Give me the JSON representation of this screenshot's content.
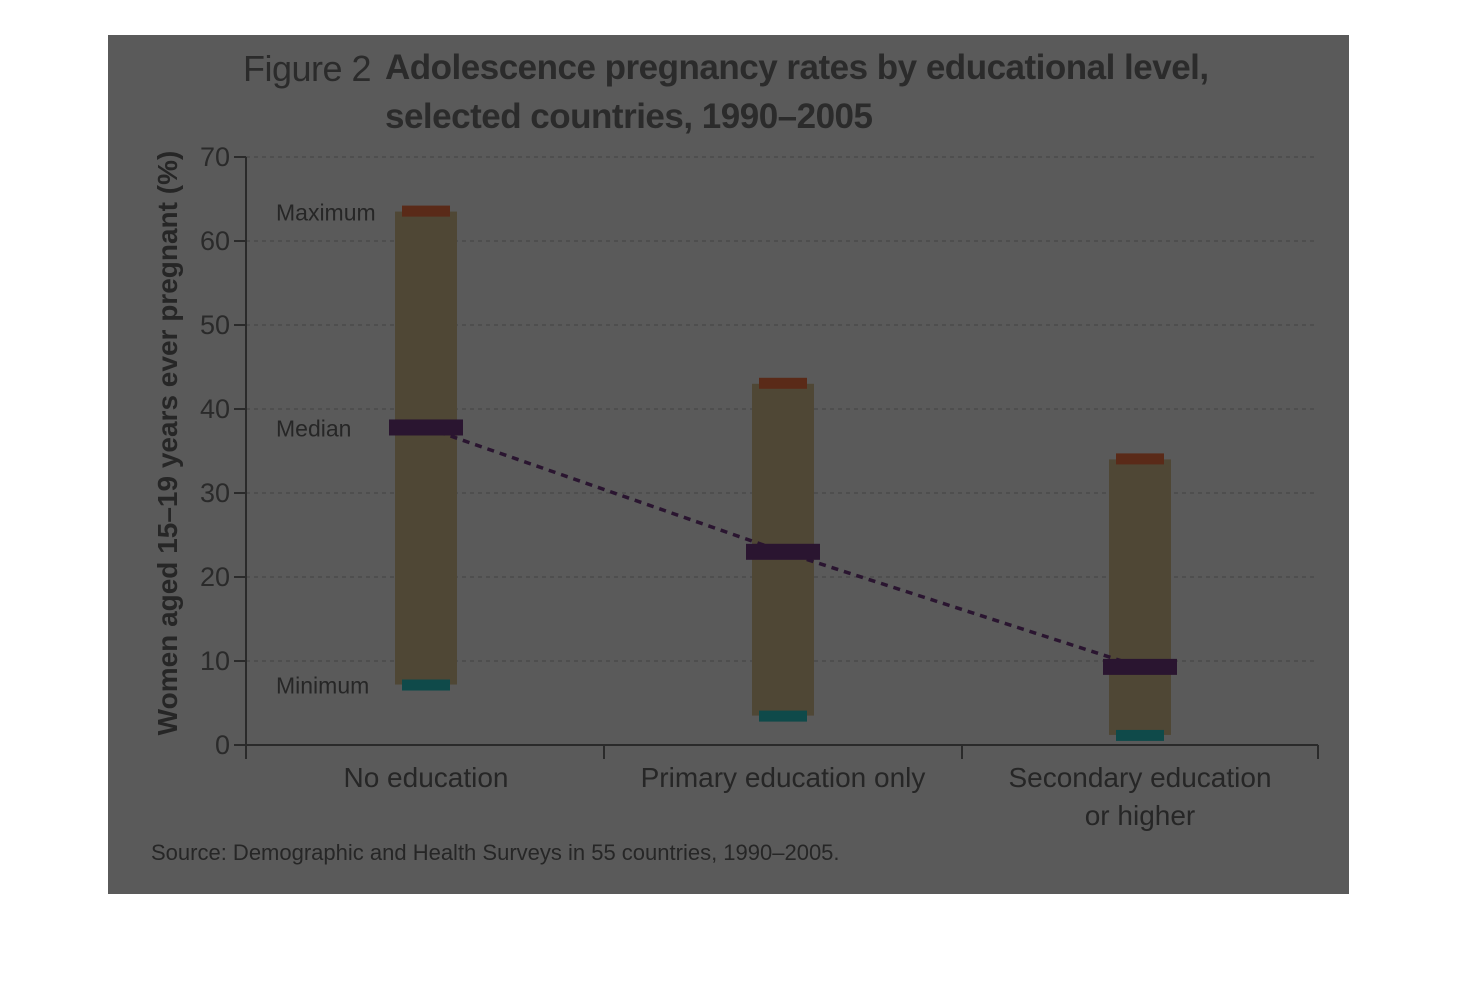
{
  "figure_label": "Figure 2",
  "title_line_1": "Adolescence pregnancy rates by educational level,",
  "title_line_2": "selected countries, 1990–2005",
  "source": "Source: Demographic and Health Surveys in 55 countries, 1990–2005.",
  "colors": {
    "background": "#5a5a5a",
    "range_bar": "#4f4735",
    "maximum": "#5a2a18",
    "median": "#2a1530",
    "minimum": "#0f4a4a",
    "median_line": "#2a1530"
  },
  "chart_data": {
    "type": "bar",
    "title": "Adolescence pregnancy rates by educational level, selected countries, 1990–2005",
    "ylabel": "Women aged 15–19 years ever pregnant (%)",
    "xlabel": "",
    "ylim": [
      0,
      70
    ],
    "yticks": [
      "0",
      "10",
      "20",
      "30",
      "40",
      "50",
      "60",
      "70"
    ],
    "grid": true,
    "categories": [
      "No education",
      "Primary education only",
      "Secondary education or higher"
    ],
    "category_lines": [
      [
        "No education"
      ],
      [
        "Primary education only"
      ],
      [
        "Secondary education",
        "or higher"
      ]
    ],
    "series": [
      {
        "name": "Maximum",
        "values": [
          63.5,
          43.0,
          34.0
        ]
      },
      {
        "name": "Median",
        "values": [
          37.8,
          23.0,
          9.3
        ]
      },
      {
        "name": "Minimum",
        "values": [
          7.2,
          3.5,
          1.2
        ]
      }
    ],
    "legend_labels": [
      "Maximum",
      "Median",
      "Minimum"
    ]
  }
}
